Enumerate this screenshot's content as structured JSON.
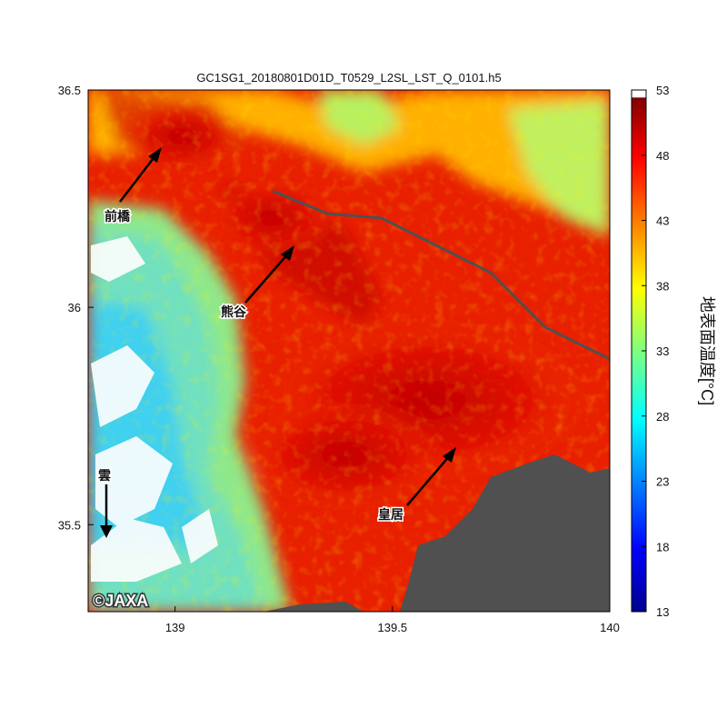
{
  "map": {
    "title": "GC1SG1_20180801D01D_T0529_L2SL_LST_Q_0101.h5",
    "xlim": [
      138.8,
      140
    ],
    "xticks": [
      139,
      139.5,
      140
    ],
    "ylim": [
      35.3,
      36.5
    ],
    "yticks": [
      35.5,
      36,
      36.5
    ],
    "colorbar": {
      "label": "地表面温度[°C]",
      "lim": [
        13,
        53
      ],
      "ticks": [
        13,
        18,
        23,
        28,
        33,
        38,
        43,
        48,
        53
      ]
    },
    "annotations": [
      "前橋",
      "熊谷",
      "皇居",
      "雲"
    ],
    "credit": "©JAXA"
  }
}
